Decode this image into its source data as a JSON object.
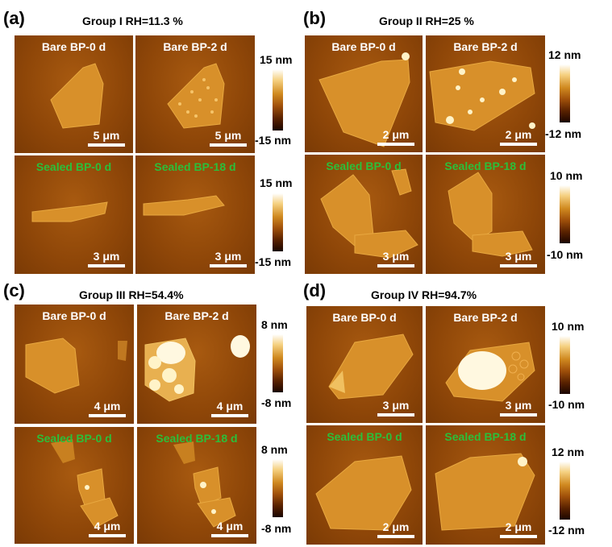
{
  "panels": [
    {
      "letter": "(a)",
      "title": "Group I   RH=11.3 %",
      "images": [
        {
          "label": "Bare BP-0 d",
          "scale": "5 μm"
        },
        {
          "label": "Bare BP-2 d",
          "scale": "5 μm"
        },
        {
          "label": "Sealed BP-0 d",
          "scale": "3 μm"
        },
        {
          "label": "Sealed BP-18 d",
          "scale": "3 μm"
        }
      ],
      "colorbars": [
        {
          "max": "15 nm",
          "min": "-15 nm"
        },
        {
          "max": "15 nm",
          "min": "-15 nm"
        }
      ]
    },
    {
      "letter": "(b)",
      "title": "Group II   RH=25 %",
      "images": [
        {
          "label": "Bare BP-0 d",
          "scale": "2 μm"
        },
        {
          "label": "Bare BP-2 d",
          "scale": "2 μm"
        },
        {
          "label": "Sealed BP-0 d",
          "scale": "3 μm"
        },
        {
          "label": "Sealed BP-18 d",
          "scale": "3 μm"
        }
      ],
      "colorbars": [
        {
          "max": "12 nm",
          "min": "-12 nm"
        },
        {
          "max": "10 nm",
          "min": "-10 nm"
        }
      ]
    },
    {
      "letter": "(c)",
      "title": "Group III   RH=54.4%",
      "images": [
        {
          "label": "Bare BP-0 d",
          "scale": "4 μm"
        },
        {
          "label": "Bare BP-2 d",
          "scale": "4 μm"
        },
        {
          "label": "Sealed BP-0 d",
          "scale": "4 μm"
        },
        {
          "label": "Sealed BP-18 d",
          "scale": "4 μm"
        }
      ],
      "colorbars": [
        {
          "max": "8 nm",
          "min": "-8 nm"
        },
        {
          "max": "8 nm",
          "min": "-8 nm"
        }
      ]
    },
    {
      "letter": "(d)",
      "title": "Group IV   RH=94.7%",
      "images": [
        {
          "label": "Bare BP-0 d",
          "scale": "3 μm"
        },
        {
          "label": "Bare BP-2 d",
          "scale": "3 μm"
        },
        {
          "label": "Sealed BP-0 d",
          "scale": "2 μm"
        },
        {
          "label": "Sealed BP-18 d",
          "scale": "2 μm"
        }
      ],
      "colorbars": [
        {
          "max": "10 nm",
          "min": "-10 nm"
        },
        {
          "max": "12 nm",
          "min": "-12 nm"
        }
      ]
    }
  ],
  "colors": {
    "bare_label": "#ffffff",
    "sealed_label": "#2bbf3a",
    "afm_background": "#8e4608"
  }
}
